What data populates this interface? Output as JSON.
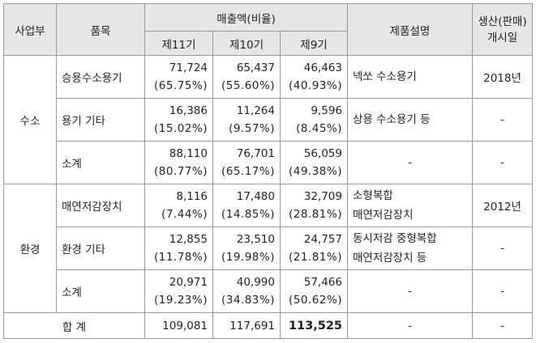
{
  "header": {
    "division": "사업부",
    "item": "품목",
    "sales": "매출액(비율)",
    "fy11": "제11기",
    "fy10": "제10기",
    "fy9": "제9기",
    "description": "제품설명",
    "launch_line1": "생산(판매)",
    "launch_line2": "개시일"
  },
  "groups": [
    {
      "division": "수소",
      "rows": [
        {
          "item": "승용수소용기",
          "fy11": "71,724",
          "fy11_pct": "(65.75%)",
          "fy10": "65,437",
          "fy10_pct": "(55.60%)",
          "fy9": "46,463",
          "fy9_pct": "(40.93%)",
          "desc1": "넥쏘 수소용기",
          "desc2": "",
          "launch": "2018년"
        },
        {
          "item": "용기 기타",
          "fy11": "16,386",
          "fy11_pct": "(15.02%)",
          "fy10": "11,264",
          "fy10_pct": "(9.57%)",
          "fy9": "9,596",
          "fy9_pct": "(8.45%)",
          "desc1": "상용 수소용기 등",
          "desc2": "",
          "launch": "-"
        },
        {
          "item": "소계",
          "fy11": "88,110",
          "fy11_pct": "(80.77%)",
          "fy10": "76,701",
          "fy10_pct": "(65.17%)",
          "fy9": "56,059",
          "fy9_pct": "(49.38%)",
          "desc1": "-",
          "desc2": "",
          "launch": "-"
        }
      ]
    },
    {
      "division": "환경",
      "rows": [
        {
          "item": "매연저감장치",
          "fy11": "8,116",
          "fy11_pct": "(7.44%)",
          "fy10": "17,480",
          "fy10_pct": "(14.85%)",
          "fy9": "32,709",
          "fy9_pct": "(28.81%)",
          "desc1": "소형복합",
          "desc2": "매연저감장치",
          "launch": "2012년"
        },
        {
          "item": "환경 기타",
          "fy11": "12,855",
          "fy11_pct": "(11.78%)",
          "fy10": "23,510",
          "fy10_pct": "(19.98%)",
          "fy9": "24,757",
          "fy9_pct": "(21.81%)",
          "desc1": "동시저감 중형복합",
          "desc2": "매연저감장치 등",
          "launch": "-"
        },
        {
          "item": "소계",
          "fy11": "20,971",
          "fy11_pct": "(19.23%)",
          "fy10": "40,990",
          "fy10_pct": "(34.83%)",
          "fy9": "57,466",
          "fy9_pct": "(50.62%)",
          "desc1": "-",
          "desc2": "",
          "launch": "-"
        }
      ]
    }
  ],
  "total": {
    "label": "합 계",
    "fy11": "109,081",
    "fy10": "117,691",
    "fy9": "113,525",
    "desc": "-",
    "launch": "-"
  }
}
